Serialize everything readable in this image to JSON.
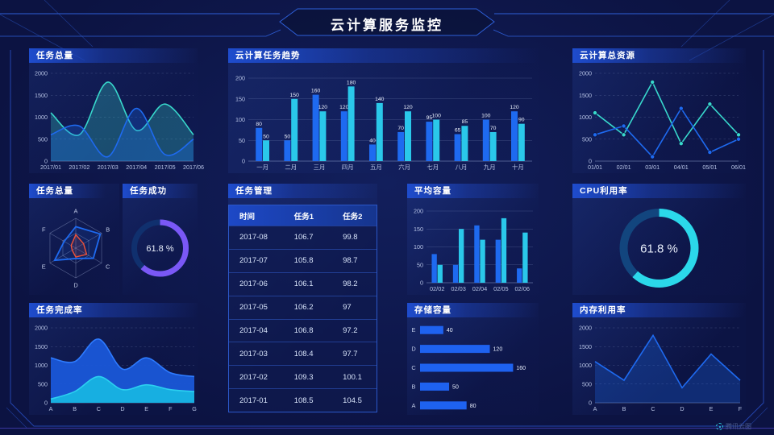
{
  "title": "云计算服务监控",
  "watermark": {
    "label": "腾讯云图"
  },
  "colors": {
    "blue": "#1e6af0",
    "cyan": "#2ac8ea",
    "teal": "#38d8cc",
    "purple": "#7a58f6",
    "red": "#f05238",
    "frame": "#2e5fd8",
    "bottom_line": "#4a44c0"
  },
  "chart_data": [
    {
      "id": "task_total",
      "type": "area",
      "title": "任务总量",
      "smooth": true,
      "area": true,
      "grid": "dashed",
      "x": [
        "2017/01",
        "2017/02",
        "2017/03",
        "2017/04",
        "2017/05",
        "2017/06"
      ],
      "ylim": [
        0,
        2000
      ],
      "yticks": [
        0,
        500,
        1000,
        1500,
        2000
      ],
      "series": [
        {
          "name": "teal-series",
          "color": "#38d8cc",
          "values": [
            1100,
            600,
            1800,
            700,
            1300,
            600
          ]
        },
        {
          "name": "blue-series",
          "color": "#1e6af0",
          "values": [
            600,
            800,
            100,
            1200,
            150,
            500
          ]
        }
      ]
    },
    {
      "id": "task_trend",
      "type": "bar",
      "title": "云计算任务趋势",
      "value_labels": true,
      "categories": [
        "一月",
        "二月",
        "三月",
        "四月",
        "五月",
        "六月",
        "七月",
        "八月",
        "九月",
        "十月"
      ],
      "ylim": [
        0,
        200
      ],
      "yticks": [
        0,
        50,
        100,
        150,
        200
      ],
      "series": [
        {
          "name": "blue-series",
          "color": "#1e6af0",
          "values": [
            80,
            50,
            160,
            120,
            40,
            70,
            95,
            65,
            100,
            120
          ]
        },
        {
          "name": "cyan-series",
          "color": "#2ac8ea",
          "values": [
            50,
            150,
            120,
            180,
            140,
            120,
            100,
            85,
            70,
            90
          ]
        }
      ]
    },
    {
      "id": "total_resources",
      "type": "line",
      "title": "云计算总资源",
      "grid": "dashed",
      "markers": true,
      "x": [
        "01/01",
        "02/01",
        "03/01",
        "04/01",
        "05/01",
        "06/01"
      ],
      "ylim": [
        0,
        2000
      ],
      "yticks": [
        0,
        500,
        1000,
        1500,
        2000
      ],
      "series": [
        {
          "name": "teal-series",
          "color": "#38d8cc",
          "values": [
            1100,
            600,
            1800,
            400,
            1300,
            600
          ]
        },
        {
          "name": "blue-series",
          "color": "#1e6af0",
          "values": [
            600,
            800,
            100,
            1200,
            200,
            500
          ]
        }
      ]
    },
    {
      "id": "task_radar",
      "type": "radar",
      "title": "任务总量",
      "axes": [
        "A",
        "B",
        "C",
        "D",
        "E",
        "F"
      ],
      "max": 1,
      "series": [
        {
          "name": "radar-blue",
          "color": "#1e6af0",
          "values": [
            0.72,
            0.95,
            0.68,
            0.35,
            0.82,
            0.45
          ]
        },
        {
          "name": "radar-red",
          "color": "#f05238",
          "values": [
            0.45,
            0.3,
            0.42,
            0.3,
            0.14,
            0.18
          ]
        }
      ]
    },
    {
      "id": "task_success",
      "type": "donut",
      "title": "任务成功",
      "value": 61.8,
      "label": "61.8 %",
      "color": "#7a58f6",
      "track": "#10306e"
    },
    {
      "id": "task_table",
      "type": "table",
      "title": "任务管理",
      "columns": [
        "时间",
        "任务1",
        "任务2"
      ],
      "rows": [
        [
          "2017-08",
          "106.7",
          "99.8"
        ],
        [
          "2017-07",
          "105.8",
          "98.7"
        ],
        [
          "2017-06",
          "106.1",
          "98.2"
        ],
        [
          "2017-05",
          "106.2",
          "97"
        ],
        [
          "2017-04",
          "106.8",
          "97.2"
        ],
        [
          "2017-03",
          "108.4",
          "97.7"
        ],
        [
          "2017-02",
          "109.3",
          "100.1"
        ],
        [
          "2017-01",
          "108.5",
          "104.5"
        ]
      ]
    },
    {
      "id": "avg_capacity",
      "type": "bar",
      "title": "平均容量",
      "value_labels": false,
      "categories": [
        "02/02",
        "02/03",
        "02/04",
        "02/05",
        "02/06"
      ],
      "ylim": [
        0,
        200
      ],
      "yticks": [
        0,
        50,
        100,
        150,
        200
      ],
      "series": [
        {
          "name": "blue-series",
          "color": "#1e6af0",
          "values": [
            80,
            50,
            160,
            120,
            40
          ]
        },
        {
          "name": "cyan-series",
          "color": "#2ac8ea",
          "values": [
            50,
            150,
            120,
            180,
            140
          ]
        }
      ]
    },
    {
      "id": "cpu_usage",
      "type": "donut",
      "title": "CPU利用率",
      "value": 61.8,
      "label": "61.8 %",
      "color": "#2bd8ea",
      "track": "#12457e"
    },
    {
      "id": "completion_rate",
      "type": "area",
      "title": "任务完成率",
      "smooth": true,
      "opaque": true,
      "grid": "dashed",
      "x": [
        "A",
        "B",
        "C",
        "D",
        "E",
        "F",
        "G"
      ],
      "ylim": [
        0,
        2000
      ],
      "yticks": [
        0,
        500,
        1000,
        1500,
        2000
      ],
      "series": [
        {
          "name": "area-blue",
          "color": "#2e7bff",
          "fill": "#1a57d8",
          "values": [
            1200,
            1100,
            1700,
            900,
            1200,
            800,
            700
          ]
        },
        {
          "name": "area-cyan",
          "color": "#2cd0f0",
          "fill": "#17b4e2",
          "values": [
            100,
            300,
            700,
            350,
            480,
            350,
            300
          ]
        }
      ]
    },
    {
      "id": "storage_capacity",
      "type": "hbar",
      "title": "存储容量",
      "color": "#1e62f0",
      "xmax": 165,
      "categories": [
        "E",
        "D",
        "C",
        "B",
        "A"
      ],
      "values": [
        40,
        120,
        160,
        50,
        80
      ]
    },
    {
      "id": "memory_usage",
      "type": "line",
      "title": "内存利用率",
      "grid": "dashed",
      "area": true,
      "x": [
        "A",
        "B",
        "C",
        "D",
        "E",
        "F"
      ],
      "ylim": [
        0,
        2000
      ],
      "yticks": [
        0,
        500,
        1000,
        1500,
        2000
      ],
      "series": [
        {
          "name": "blue-series",
          "color": "#1e6af0",
          "values": [
            1100,
            600,
            1800,
            400,
            1300,
            600
          ]
        }
      ]
    }
  ]
}
